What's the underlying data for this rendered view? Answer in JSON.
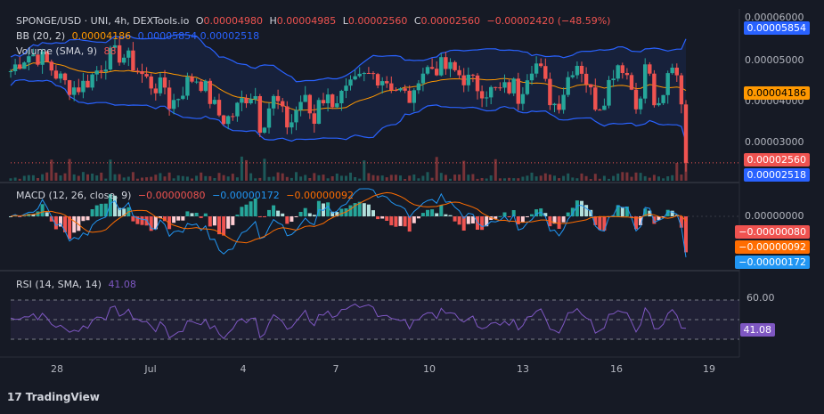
{
  "header": {
    "symbol": "SPONGE/USD · UNI, 4h, DEXTools.io",
    "ohlc": [
      {
        "k": "O",
        "v": "0.00004980"
      },
      {
        "k": "H",
        "v": "0.00004985"
      },
      {
        "k": "L",
        "v": "0.00002560"
      },
      {
        "k": "C",
        "v": "0.00002560"
      }
    ],
    "change": "−0.00002420 (−48.59%)"
  },
  "indicators": {
    "bb": {
      "label": "BB (20, 2)",
      "basis": "0.00004186",
      "upper": "0.00005854",
      "lower": "0.00002518"
    },
    "volume": {
      "label": "Volume (SMA, 9)",
      "value": "88"
    },
    "macd": {
      "label": "MACD (12, 26, close, 9)",
      "hist": "−0.00000080",
      "macd": "−0.00000172",
      "signal": "−0.00000092"
    },
    "rsi": {
      "label": "RSI (14, SMA, 14)",
      "value": "41.08"
    }
  },
  "price_axis": {
    "ticks": [
      "0.00006000",
      "0.00005000",
      "0.00004000",
      "0.00003000"
    ]
  },
  "macd_axis": {
    "ticks": [
      "0.00000000"
    ]
  },
  "rsi_axis": {
    "ticks": [
      "60.00"
    ]
  },
  "badges": {
    "bb_upper": "0.00005854",
    "bb_basis": "0.00004186",
    "last_price": "0.00002560",
    "bb_lower": "0.00002518",
    "macd_hist": "−0.00000080",
    "macd_signal": "−0.00000092",
    "macd_line": "−0.00000172",
    "rsi": "41.08"
  },
  "time_axis": {
    "ticks": [
      "28",
      "Jul",
      "4",
      "7",
      "10",
      "13",
      "16",
      "19"
    ]
  },
  "brand": {
    "name": "TradingView",
    "logo": "17"
  },
  "colors": {
    "up": "#26a69a",
    "down": "#ef5350",
    "bb": "#2962ff",
    "basis": "#ff9800",
    "macd": "#2196f3",
    "signal": "#ff6d00",
    "rsi": "#7e57c2",
    "bg": "#161a25"
  },
  "chart_data": [
    {
      "type": "candlestick",
      "title": "SPONGE/USD · UNI, 4h, DEXTools.io",
      "x_ticks": [
        "28",
        "Jul",
        "4",
        "7",
        "10",
        "13",
        "16",
        "19"
      ],
      "ylim": [
        2.45e-05,
        6.1e-05
      ],
      "last": {
        "open": 4.98e-05,
        "high": 4.985e-05,
        "low": 2.56e-05,
        "close": 2.56e-05,
        "change": -2.42e-05,
        "change_pct": -48.59
      },
      "bollinger": {
        "period": 20,
        "mult": 2,
        "basis": 4.186e-05,
        "upper": 5.854e-05,
        "lower": 2.518e-05
      },
      "volume_sma": {
        "period": 9,
        "value": 88
      }
    },
    {
      "type": "line",
      "title": "MACD (12, 26, close, 9)",
      "series": [
        {
          "name": "Histogram",
          "last": -8e-07
        },
        {
          "name": "MACD",
          "last": -1.72e-06
        },
        {
          "name": "Signal",
          "last": -9.2e-07
        }
      ],
      "y_ticks": [
        "0.00000000"
      ]
    },
    {
      "type": "line",
      "title": "RSI (14, SMA, 14)",
      "series": [
        {
          "name": "RSI",
          "last": 41.08
        }
      ],
      "y_ticks": [
        "60.00"
      ]
    }
  ]
}
